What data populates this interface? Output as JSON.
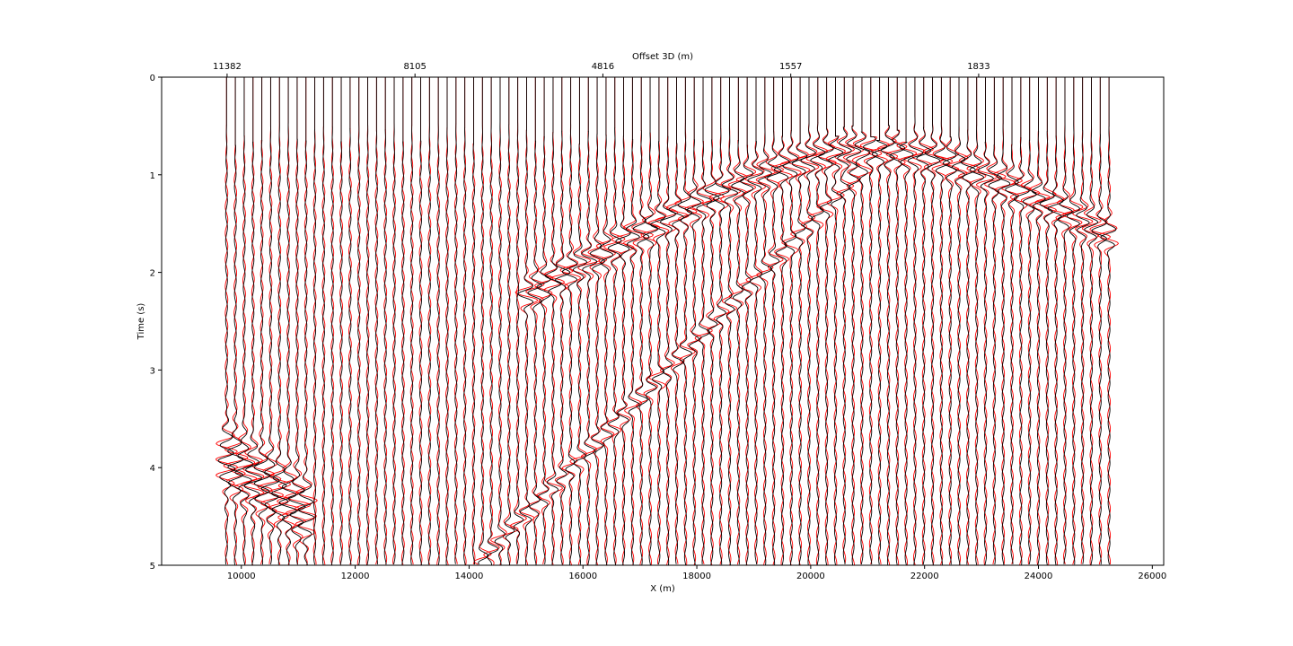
{
  "chart_data": {
    "type": "line",
    "title": "",
    "xlabel": "X (m)",
    "ylabel": "Time (s)",
    "top_xlabel": "Offset 3D (m)",
    "xlim": [
      8600,
      26200
    ],
    "ylim": [
      5,
      0
    ],
    "y_inverted": true,
    "x_ticks": [
      10000,
      12000,
      14000,
      16000,
      18000,
      20000,
      22000,
      24000,
      26000
    ],
    "x_tick_labels": [
      "10000",
      "12000",
      "14000",
      "16000",
      "18000",
      "20000",
      "22000",
      "24000",
      "26000"
    ],
    "y_ticks": [
      0,
      1,
      2,
      3,
      4,
      5
    ],
    "y_tick_labels": [
      "0",
      "1",
      "2",
      "3",
      "4",
      "5"
    ],
    "top_ticks": [
      9750,
      13050,
      16350,
      19650,
      22950
    ],
    "top_tick_labels": [
      "11382",
      "8105",
      "4816",
      "1557",
      "1833"
    ],
    "traces": {
      "x_start": 9740,
      "x_step": 155,
      "count": 101,
      "t_start": 0,
      "t_end": 5
    },
    "series": [
      {
        "color": "#000000"
      },
      {
        "color": "#ff0000"
      }
    ],
    "grid": false
  }
}
